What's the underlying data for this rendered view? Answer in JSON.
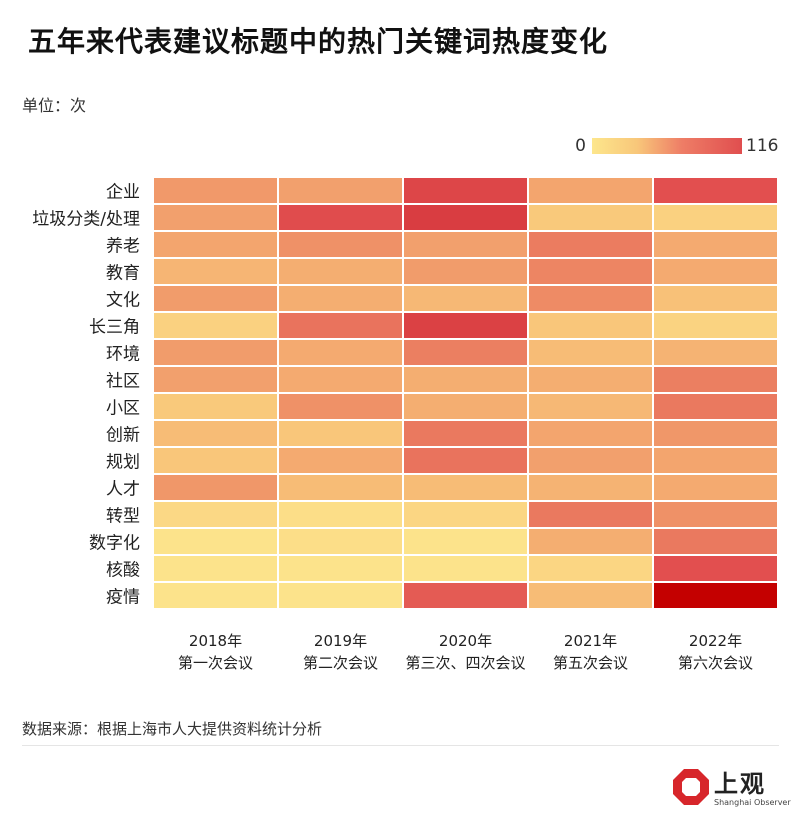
{
  "header": {
    "title": "五年来代表建议标题中的热门关键词热度变化",
    "unit": "单位：次"
  },
  "legend": {
    "min": "0",
    "max": "116",
    "colors": [
      "#fde68c",
      "#f8c77a",
      "#ee7d66",
      "#e04e4f"
    ]
  },
  "chart_data": {
    "type": "heatmap",
    "title": "五年来代表建议标题中的热门关键词热度变化",
    "unit": "次",
    "value_range": [
      0,
      116
    ],
    "rows": [
      "企业",
      "垃圾分类/处理",
      "养老",
      "教育",
      "文化",
      "长三角",
      "环境",
      "社区",
      "小区",
      "创新",
      "规划",
      "人才",
      "转型",
      "数字化",
      "核酸",
      "疫情"
    ],
    "columns": [
      {
        "year": "2018年",
        "session": "第一次会议"
      },
      {
        "year": "2019年",
        "session": "第二次会议"
      },
      {
        "year": "2020年",
        "session": "第三次、四次会议"
      },
      {
        "year": "2021年",
        "session": "第五次会议"
      },
      {
        "year": "2022年",
        "session": "第六次会议"
      }
    ],
    "values": [
      [
        45,
        42,
        75,
        40,
        70
      ],
      [
        42,
        72,
        80,
        24,
        18
      ],
      [
        40,
        48,
        42,
        55,
        38
      ],
      [
        33,
        36,
        44,
        52,
        38
      ],
      [
        44,
        36,
        32,
        50,
        28
      ],
      [
        18,
        58,
        78,
        26,
        16
      ],
      [
        44,
        38,
        54,
        30,
        34
      ],
      [
        42,
        38,
        36,
        36,
        54
      ],
      [
        24,
        48,
        36,
        32,
        56
      ],
      [
        30,
        26,
        56,
        40,
        46
      ],
      [
        26,
        38,
        58,
        42,
        40
      ],
      [
        46,
        30,
        30,
        34,
        38
      ],
      [
        12,
        8,
        14,
        56,
        48
      ],
      [
        4,
        8,
        4,
        36,
        56
      ],
      [
        4,
        4,
        4,
        14,
        70
      ],
      [
        4,
        4,
        66,
        30,
        116
      ]
    ]
  },
  "footer": {
    "source": "数据来源：根据上海市人大提供资料统计分析",
    "logo_text": "上观",
    "logo_sub": "Shanghai Observer"
  }
}
